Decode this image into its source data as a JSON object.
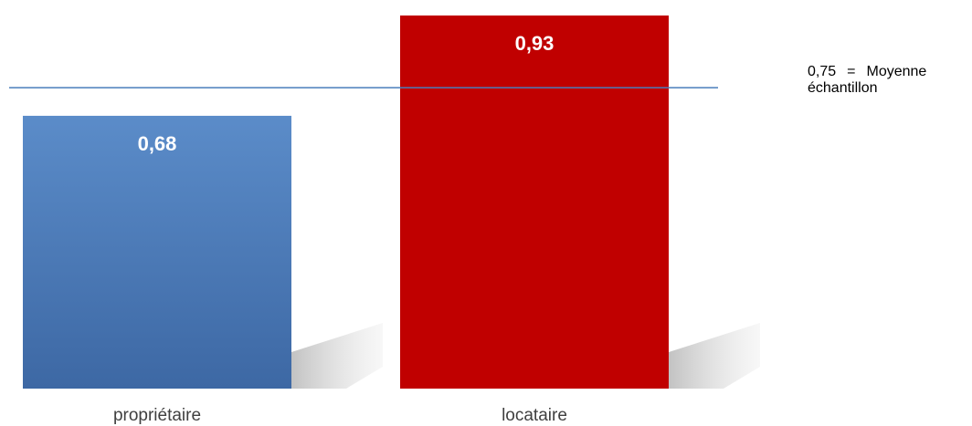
{
  "chart_data": {
    "type": "bar",
    "categories": [
      "propriétaire",
      "locataire"
    ],
    "values": [
      0.68,
      0.93
    ],
    "value_labels": [
      "0,68",
      "0,93"
    ],
    "colors": [
      "#4f81bd",
      "#c00000"
    ],
    "title": "",
    "xlabel": "",
    "ylabel": "",
    "ylim": [
      0,
      0.93
    ],
    "grid": false,
    "legend": "none",
    "reference_line": {
      "value": 0.75,
      "color": "#4a7ebb",
      "label_value": "0,75",
      "label_sep": "=",
      "label_word": "Moyenne",
      "label_line2": "échantillon"
    }
  }
}
